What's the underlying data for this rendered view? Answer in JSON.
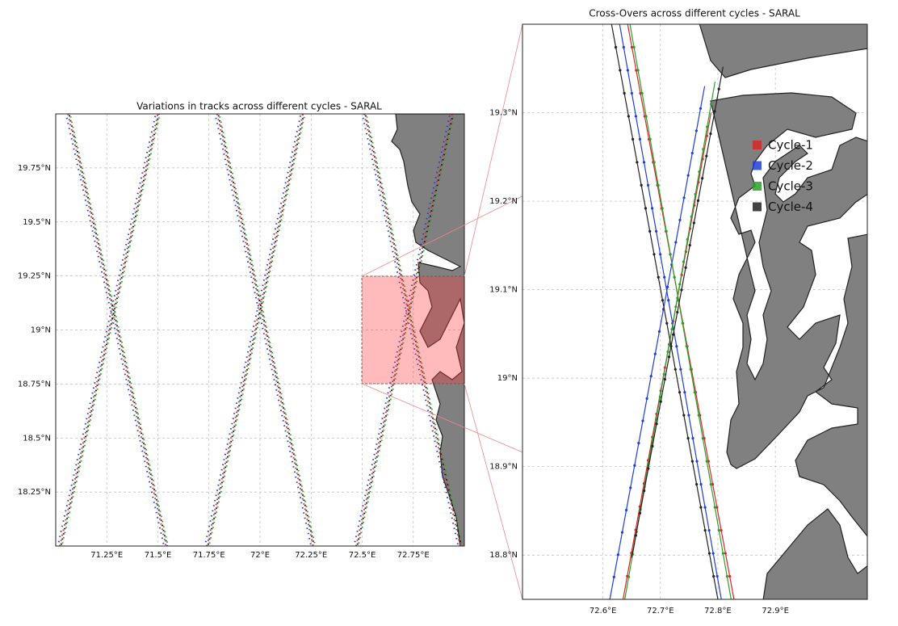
{
  "chart_data": [
    {
      "type": "line",
      "title": "Variations in tracks across different cycles - SARAL",
      "linestyle": "dotted",
      "grid": true,
      "xlim": [
        71.0,
        73.0
      ],
      "ylim": [
        18.0,
        20.0
      ],
      "xticks": [
        {
          "value": 71.25,
          "label": "71.25°E"
        },
        {
          "value": 71.5,
          "label": "71.5°E"
        },
        {
          "value": 71.75,
          "label": "71.75°E"
        },
        {
          "value": 72.0,
          "label": "72°E"
        },
        {
          "value": 72.25,
          "label": "72.25°E"
        },
        {
          "value": 72.5,
          "label": "72.5°E"
        },
        {
          "value": 72.75,
          "label": "72.75°E"
        }
      ],
      "yticks": [
        {
          "value": 18.25,
          "label": "18.25°N"
        },
        {
          "value": 18.5,
          "label": "18.5°N"
        },
        {
          "value": 18.75,
          "label": "18.75°N"
        },
        {
          "value": 19.0,
          "label": "19°N"
        },
        {
          "value": 19.25,
          "label": "19.25°N"
        },
        {
          "value": 19.5,
          "label": "19.5°N"
        },
        {
          "value": 19.75,
          "label": "19.75°N"
        }
      ],
      "series": [
        {
          "color": "#d62728",
          "x": [
            71.06,
            71.54,
            null,
            71.02,
            71.5,
            null,
            71.79,
            72.26,
            null,
            71.74,
            72.21,
            null,
            72.51,
            72.98,
            null,
            72.47,
            72.94
          ],
          "y": [
            20.0,
            18.0,
            null,
            18.0,
            20.0,
            null,
            20.0,
            18.0,
            null,
            18.0,
            20.0,
            null,
            20.0,
            18.0,
            null,
            18.0,
            20.0
          ]
        },
        {
          "color": "#1f3fd6",
          "x": [
            71.05,
            71.53,
            null,
            71.01,
            71.49,
            null,
            71.78,
            72.25,
            null,
            71.73,
            72.2,
            null,
            72.5,
            72.97,
            null,
            72.46,
            72.93
          ],
          "y": [
            20.0,
            18.0,
            null,
            18.0,
            20.0,
            null,
            20.0,
            18.0,
            null,
            18.0,
            20.0,
            null,
            20.0,
            18.0,
            null,
            18.0,
            20.0
          ]
        },
        {
          "color": "#2ca02c",
          "x": [
            71.07,
            71.55,
            null,
            71.03,
            71.51,
            null,
            71.8,
            72.27,
            null,
            71.75,
            72.22,
            null,
            72.52,
            72.99,
            null,
            72.48,
            72.95
          ],
          "y": [
            20.0,
            18.0,
            null,
            18.0,
            20.0,
            null,
            20.0,
            18.0,
            null,
            18.0,
            20.0,
            null,
            20.0,
            18.0,
            null,
            18.0,
            20.0
          ]
        },
        {
          "color": "#111111",
          "x": [
            71.065,
            71.545,
            null,
            71.025,
            71.505,
            null,
            71.795,
            72.265,
            null,
            71.745,
            72.215,
            null,
            72.515,
            72.985,
            null,
            72.475,
            72.945
          ],
          "y": [
            20.0,
            18.0,
            null,
            18.0,
            20.0,
            null,
            20.0,
            18.0,
            null,
            18.0,
            20.0,
            null,
            20.0,
            18.0,
            null,
            18.0,
            20.0
          ]
        }
      ]
    },
    {
      "type": "line",
      "title": "Cross-Overs across different cycles - SARAL",
      "linestyle": "solid",
      "grid": true,
      "xlim": [
        72.46,
        73.06
      ],
      "ylim": [
        18.75,
        19.4
      ],
      "xticks": [
        {
          "value": 72.6,
          "label": "72.6°E"
        },
        {
          "value": 72.7,
          "label": "72.7°E"
        },
        {
          "value": 72.8,
          "label": "72.8°E"
        },
        {
          "value": 72.9,
          "label": "72.9°E"
        }
      ],
      "yticks": [
        {
          "value": 18.8,
          "label": "18.8°N"
        },
        {
          "value": 18.9,
          "label": "18.9°N"
        },
        {
          "value": 19.0,
          "label": "19°N"
        },
        {
          "value": 19.1,
          "label": "19.1°N"
        },
        {
          "value": 19.2,
          "label": "19.2°N"
        },
        {
          "value": 19.3,
          "label": "19.3°N"
        }
      ],
      "series": [
        {
          "name": "Cycle-1",
          "color": "#d62728",
          "x": [
            72.643,
            72.828,
            null,
            72.635,
            72.788
          ],
          "y": [
            19.4,
            18.75,
            null,
            18.75,
            19.3
          ]
        },
        {
          "name": "Cycle-2",
          "color": "#1f3fd6",
          "x": [
            72.629,
            72.806,
            null,
            72.612,
            72.777
          ],
          "y": [
            19.4,
            18.75,
            null,
            18.75,
            19.33
          ]
        },
        {
          "name": "Cycle-3",
          "color": "#2ca02c",
          "x": [
            72.647,
            72.823,
            null,
            72.638,
            72.795
          ],
          "y": [
            19.4,
            18.75,
            null,
            18.75,
            19.335
          ]
        },
        {
          "name": "Cycle-4",
          "color": "#222222",
          "x": [
            72.615,
            72.8,
            null,
            72.65,
            72.809
          ],
          "y": [
            19.4,
            18.75,
            null,
            18.797,
            19.352
          ]
        }
      ]
    }
  ]
}
